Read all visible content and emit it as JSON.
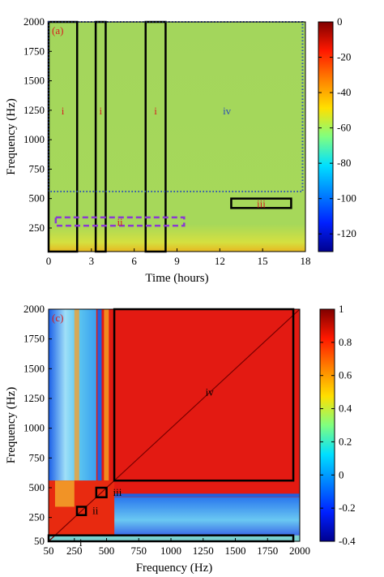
{
  "chart_data": [
    {
      "type": "heatmap",
      "panel": "(a)",
      "xlabel": "Time (hours)",
      "ylabel": "Frequency (Hz)",
      "xlim": [
        0,
        18
      ],
      "ylim": [
        50,
        2000
      ],
      "xticks": [
        0,
        3,
        6,
        9,
        12,
        15,
        18
      ],
      "yticks": [
        250,
        500,
        750,
        1000,
        1250,
        1500,
        1750,
        2000
      ],
      "colorbar": {
        "range": [
          -130,
          0
        ],
        "ticks": [
          0,
          -20,
          -40,
          -60,
          -80,
          -100,
          -120
        ]
      },
      "background_level": -55,
      "regions": [
        {
          "label": "i",
          "label_color": "#d62020",
          "x": [
            0,
            2
          ],
          "y": [
            50,
            2000
          ],
          "style": "solid",
          "color": "#000000"
        },
        {
          "label": "i",
          "label_color": "#d62020",
          "x": [
            3.3,
            4
          ],
          "y": [
            50,
            2000
          ],
          "style": "solid",
          "color": "#000000"
        },
        {
          "label": "i",
          "label_color": "#d62020",
          "x": [
            6.8,
            8.2
          ],
          "y": [
            50,
            2000
          ],
          "style": "solid",
          "color": "#000000"
        },
        {
          "label": "ii",
          "label_color": "#d62020",
          "x": [
            0.5,
            9.5
          ],
          "y": [
            270,
            340
          ],
          "style": "dashed",
          "color": "#8a3ad2"
        },
        {
          "label": "iii",
          "label_color": "#d62020",
          "x": [
            12.8,
            17
          ],
          "y": [
            420,
            500
          ],
          "style": "solid",
          "color": "#000000"
        },
        {
          "label": "iv",
          "label_color": "#2b4fb5",
          "x": [
            0,
            17.8
          ],
          "y": [
            560,
            2000
          ],
          "style": "dotted",
          "color": "#2b4fb5"
        }
      ]
    },
    {
      "type": "heatmap",
      "panel": "(c)",
      "xlabel": "Frequency (Hz)",
      "ylabel": "Frequency (Hz)",
      "xlim": [
        50,
        2000
      ],
      "ylim": [
        50,
        2000
      ],
      "xticks": [
        50,
        250,
        500,
        750,
        1000,
        1250,
        1500,
        1750,
        2000
      ],
      "yticks": [
        50,
        250,
        500,
        750,
        1000,
        1250,
        1500,
        1750,
        2000
      ],
      "colorbar": {
        "range": [
          -0.4,
          1
        ],
        "ticks": [
          1,
          0.8,
          0.6,
          0.4,
          0.2,
          0,
          -0.2,
          -0.4
        ]
      },
      "regions": [
        {
          "label": "i",
          "x": [
            50,
            1950
          ],
          "y": [
            50,
            100
          ],
          "style": "solid",
          "color": "#000000"
        },
        {
          "label": "ii",
          "x": [
            270,
            340
          ],
          "y": [
            270,
            340
          ],
          "style": "solid",
          "color": "#000000"
        },
        {
          "label": "iii",
          "x": [
            420,
            500
          ],
          "y": [
            420,
            500
          ],
          "style": "solid",
          "color": "#000000"
        },
        {
          "label": "iv",
          "x": [
            560,
            1950
          ],
          "y": [
            560,
            2000
          ],
          "style": "solid",
          "color": "#000000"
        }
      ]
    }
  ]
}
